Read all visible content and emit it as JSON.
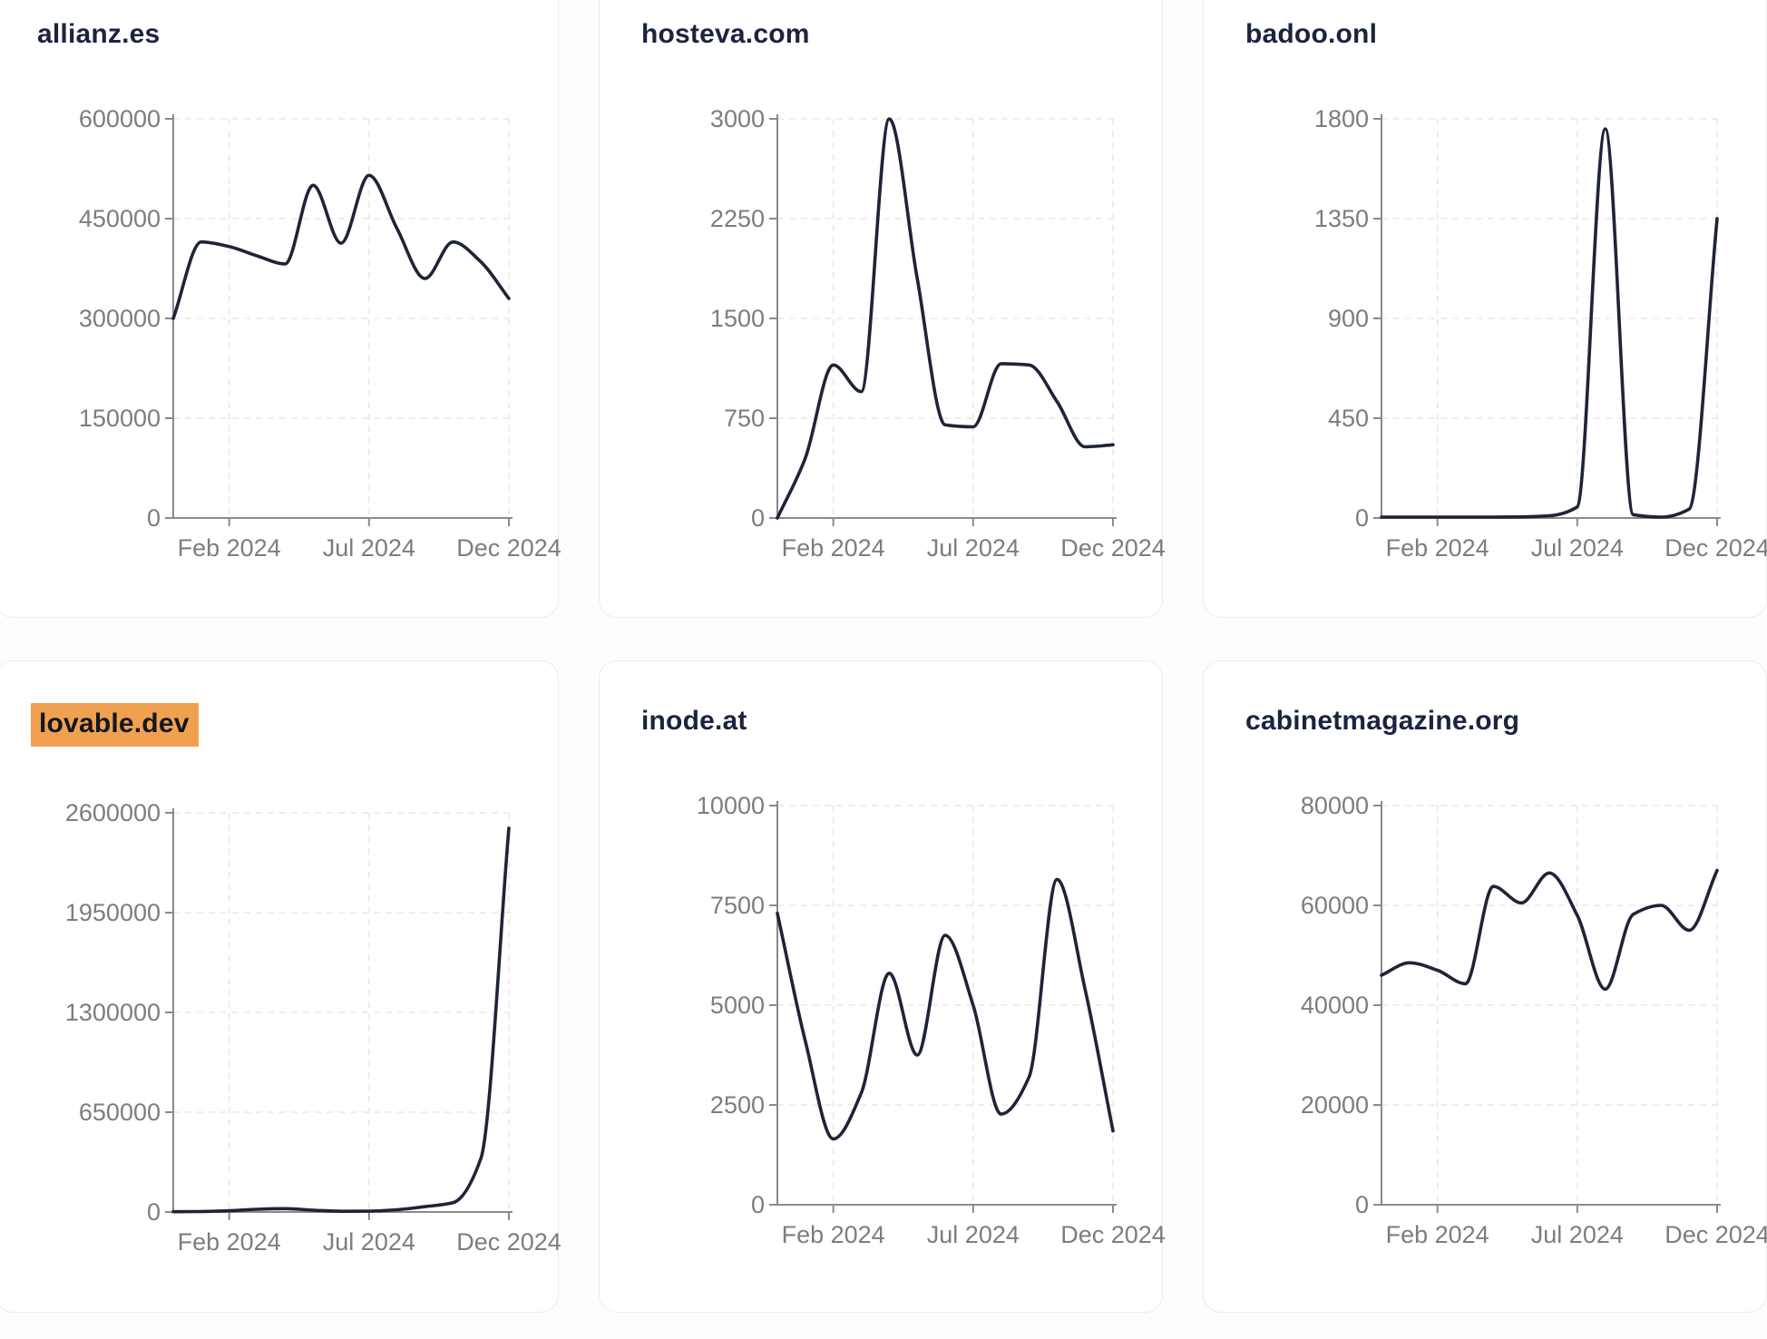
{
  "page": {
    "description": "Grid of six domain traffic sparkline cards",
    "columns": 3,
    "rows": 2
  },
  "style": {
    "line_color": "#1e2438",
    "title_color": "#1b2340",
    "axis_color": "#8a8a8a",
    "tick_label_color": "#7d7d7d",
    "grid_color": "#e8e8e8",
    "card_border": "#ebedee",
    "card_bg": "#ffffff",
    "page_bg": "#fdfdfe",
    "highlight_bg": "#f0a150",
    "highlight_text": "#131722"
  },
  "chart_data": [
    {
      "type": "line",
      "title": "allianz.es",
      "highlighted": false,
      "ylim": [
        0,
        600000
      ],
      "y_ticks": [
        0,
        150000,
        300000,
        450000,
        600000
      ],
      "x_tick_labels": [
        "Feb 2024",
        "Jul 2024",
        "Dec 2024"
      ],
      "x_tick_positions": [
        2,
        7,
        12
      ],
      "n_points": 13,
      "values": [
        300000,
        415000,
        408000,
        394000,
        382000,
        500000,
        413000,
        515000,
        435000,
        360000,
        415000,
        385000,
        330000
      ],
      "grid": true,
      "legend": "none"
    },
    {
      "type": "line",
      "title": "hosteva.com",
      "highlighted": false,
      "ylim": [
        0,
        3000
      ],
      "y_ticks": [
        0,
        750,
        1500,
        2250,
        3000
      ],
      "x_tick_labels": [
        "Feb 2024",
        "Jul 2024",
        "Dec 2024"
      ],
      "x_tick_positions": [
        2,
        7,
        12
      ],
      "n_points": 13,
      "values": [
        0,
        450,
        1150,
        950,
        3000,
        1800,
        700,
        685,
        1160,
        1150,
        875,
        535,
        550
      ],
      "grid": true,
      "legend": "none"
    },
    {
      "type": "line",
      "title": "badoo.onl",
      "highlighted": false,
      "ylim": [
        0,
        1800
      ],
      "y_ticks": [
        0,
        450,
        900,
        1350,
        1800
      ],
      "x_tick_labels": [
        "Feb 2024",
        "Jul 2024",
        "Dec 2024"
      ],
      "x_tick_positions": [
        2,
        7,
        12
      ],
      "n_points": 13,
      "values": [
        4,
        4,
        4,
        4,
        4,
        5,
        10,
        50,
        1755,
        15,
        4,
        40,
        1350
      ],
      "grid": true,
      "legend": "none"
    },
    {
      "type": "line",
      "title": "lovable.dev",
      "highlighted": true,
      "ylim": [
        0,
        2600000
      ],
      "y_ticks": [
        0,
        650000,
        1300000,
        1950000,
        2600000
      ],
      "x_tick_labels": [
        "Feb 2024",
        "Jul 2024",
        "Dec 2024"
      ],
      "x_tick_positions": [
        2,
        7,
        12
      ],
      "n_points": 13,
      "values": [
        2000,
        3000,
        8000,
        18000,
        22000,
        12000,
        5000,
        6000,
        15000,
        35000,
        60000,
        350000,
        2500000
      ],
      "grid": true,
      "legend": "none"
    },
    {
      "type": "line",
      "title": "inode.at",
      "highlighted": false,
      "ylim": [
        0,
        10000
      ],
      "y_ticks": [
        0,
        2500,
        5000,
        7500,
        10000
      ],
      "x_tick_labels": [
        "Feb 2024",
        "Jul 2024",
        "Dec 2024"
      ],
      "x_tick_positions": [
        2,
        7,
        12
      ],
      "n_points": 13,
      "values": [
        7300,
        4100,
        1650,
        2800,
        5800,
        3750,
        6750,
        5000,
        2270,
        3200,
        8150,
        5400,
        1850
      ],
      "grid": true,
      "legend": "none"
    },
    {
      "type": "line",
      "title": "cabinetmagazine.org",
      "highlighted": false,
      "ylim": [
        0,
        80000
      ],
      "y_ticks": [
        0,
        20000,
        40000,
        60000,
        80000
      ],
      "x_tick_labels": [
        "Feb 2024",
        "Jul 2024",
        "Dec 2024"
      ],
      "x_tick_positions": [
        2,
        7,
        12
      ],
      "n_points": 13,
      "values": [
        46000,
        48500,
        47000,
        44300,
        63800,
        60500,
        66500,
        58000,
        43200,
        58200,
        60000,
        55000,
        67000
      ],
      "grid": true,
      "legend": "none"
    }
  ]
}
